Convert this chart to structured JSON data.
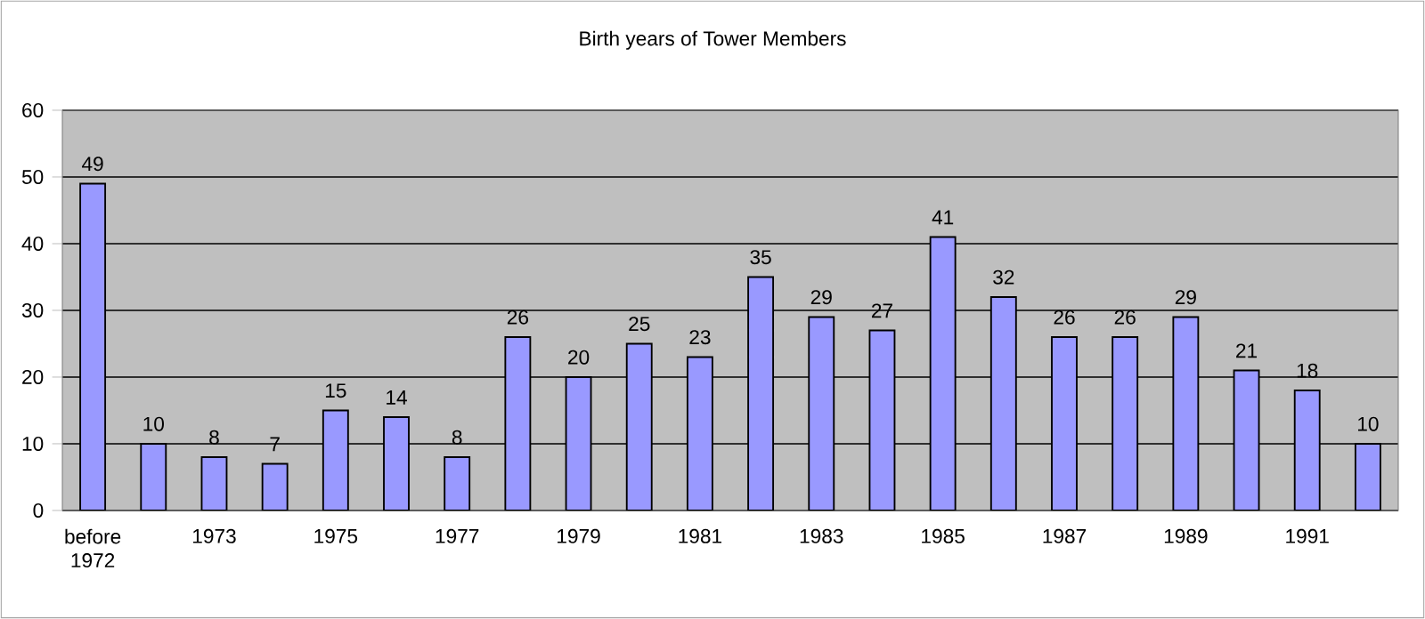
{
  "chart_data": {
    "type": "bar",
    "title": "Birth years of Tower Members",
    "categories": [
      "before 1972",
      null,
      "1973",
      null,
      "1975",
      null,
      "1977",
      null,
      "1979",
      null,
      "1981",
      null,
      "1983",
      null,
      "1985",
      null,
      "1987",
      null,
      "1989",
      null,
      "1991",
      null
    ],
    "values": [
      49,
      10,
      8,
      7,
      15,
      14,
      8,
      26,
      20,
      25,
      23,
      35,
      29,
      27,
      41,
      32,
      26,
      26,
      29,
      21,
      18,
      10
    ],
    "color": "#9999ff",
    "ylim": [
      0,
      60
    ],
    "yticks": [
      0,
      10,
      20,
      30,
      40,
      50,
      60
    ],
    "grid": "y",
    "data_labels": true
  }
}
